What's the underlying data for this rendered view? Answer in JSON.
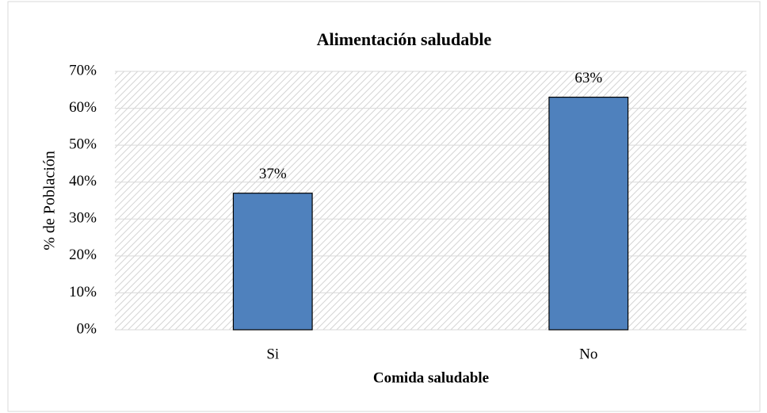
{
  "chart_data": {
    "type": "bar",
    "title": "Alimentación saludable",
    "x_label": "Comida saludable",
    "y_label": "% de Población",
    "categories": [
      "Si",
      "No"
    ],
    "values": [
      37,
      63
    ],
    "value_labels": [
      "37%",
      "63%"
    ],
    "color": "#4f81bd",
    "ylim": [
      0,
      70
    ],
    "yticks": [
      {
        "value": 0,
        "label": "0%"
      },
      {
        "value": 10,
        "label": "10%"
      },
      {
        "value": 20,
        "label": "20%"
      },
      {
        "value": 30,
        "label": "30%"
      },
      {
        "value": 40,
        "label": "40%"
      },
      {
        "value": 50,
        "label": "50%"
      },
      {
        "value": 60,
        "label": "60%"
      },
      {
        "value": 70,
        "label": "70%"
      }
    ],
    "grid": true
  }
}
